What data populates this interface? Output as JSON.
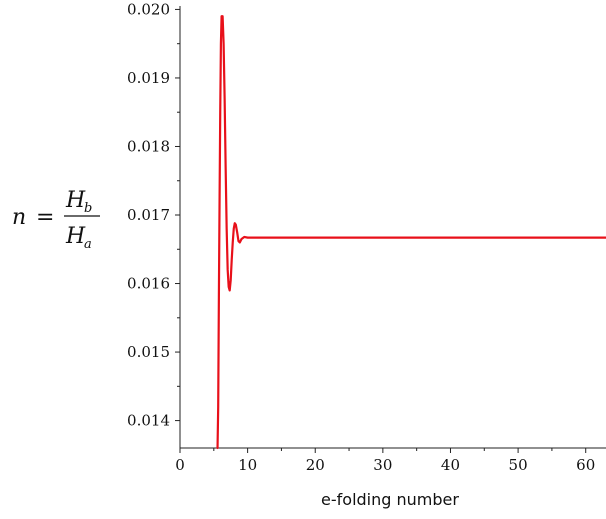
{
  "chart_data": {
    "type": "line",
    "xlabel": "e-folding number",
    "ylabel": {
      "lhs": "n",
      "equals": "=",
      "numerator": "H",
      "numerator_sub": "b",
      "denominator": "H",
      "denominator_sub": "a"
    },
    "xlim": [
      0,
      63
    ],
    "ylim": [
      0.0136,
      0.02005
    ],
    "x_ticks": [
      "0",
      "10",
      "20",
      "30",
      "40",
      "50",
      "60"
    ],
    "y_ticks": [
      "0.014",
      "0.015",
      "0.016",
      "0.017",
      "0.018",
      "0.019",
      "0.020"
    ],
    "grid": false,
    "series": [
      {
        "color": "#e8101a",
        "points": [
          [
            5.55,
            0.0136
          ],
          [
            5.65,
            0.0142
          ],
          [
            5.75,
            0.0158
          ],
          [
            5.85,
            0.0172
          ],
          [
            5.95,
            0.0185
          ],
          [
            6.05,
            0.0195
          ],
          [
            6.15,
            0.0199
          ],
          [
            6.3,
            0.0199
          ],
          [
            6.45,
            0.0195
          ],
          [
            6.6,
            0.0187
          ],
          [
            6.75,
            0.0177
          ],
          [
            6.9,
            0.0168
          ],
          [
            7.05,
            0.0162
          ],
          [
            7.2,
            0.01595
          ],
          [
            7.35,
            0.0159
          ],
          [
            7.5,
            0.01605
          ],
          [
            7.65,
            0.01635
          ],
          [
            7.8,
            0.0166
          ],
          [
            7.95,
            0.0168
          ],
          [
            8.1,
            0.01688
          ],
          [
            8.25,
            0.01686
          ],
          [
            8.45,
            0.01675
          ],
          [
            8.65,
            0.01662
          ],
          [
            8.85,
            0.0166
          ],
          [
            9.1,
            0.01665
          ],
          [
            9.5,
            0.01668
          ],
          [
            10.0,
            0.01667
          ],
          [
            20.0,
            0.01667
          ],
          [
            40.0,
            0.01667
          ],
          [
            63.0,
            0.01667
          ]
        ]
      }
    ]
  }
}
